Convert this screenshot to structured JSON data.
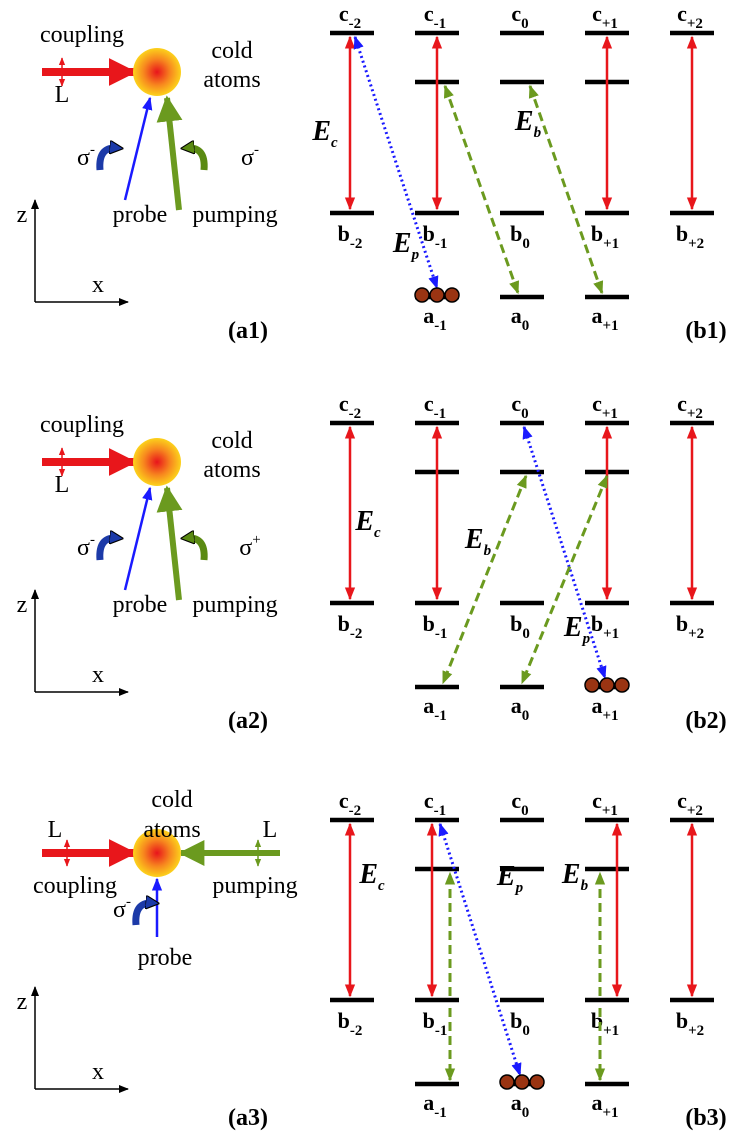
{
  "rows": [
    {
      "coupling": "coupling",
      "cold": "cold",
      "atoms": "atoms",
      "coupling_pol": "L",
      "probe_pol": {
        "base": "σ",
        "sup": "-"
      },
      "pumping_pol": {
        "base": "σ",
        "sup": "-"
      },
      "probe": "probe",
      "pumping": "pumping",
      "z": "z",
      "x": "x",
      "label_a": "(a1)",
      "label_b": "(b1)",
      "c_levels": [
        {
          "base": "c",
          "sub": "-2"
        },
        {
          "base": "c",
          "sub": "-1"
        },
        {
          "base": "c",
          "sub": "0"
        },
        {
          "base": "c",
          "sub": "+1"
        },
        {
          "base": "c",
          "sub": "+2"
        }
      ],
      "b_levels": [
        {
          "base": "b",
          "sub": "-2"
        },
        {
          "base": "b",
          "sub": "-1"
        },
        {
          "base": "b",
          "sub": "0"
        },
        {
          "base": "b",
          "sub": "+1"
        },
        {
          "base": "b",
          "sub": "+2"
        }
      ],
      "a_levels": [
        {
          "base": "a",
          "sub": "-1"
        },
        {
          "base": "a",
          "sub": "0"
        },
        {
          "base": "a",
          "sub": "+1"
        }
      ],
      "E_c": {
        "base": "E",
        "sub": "c"
      },
      "E_p": {
        "base": "E",
        "sub": "p"
      },
      "E_b": {
        "base": "E",
        "sub": "b"
      }
    },
    {
      "coupling": "coupling",
      "cold": "cold",
      "atoms": "atoms",
      "coupling_pol": "L",
      "probe_pol": {
        "base": "σ",
        "sup": "-"
      },
      "pumping_pol": {
        "base": "σ",
        "sup": "+"
      },
      "probe": "probe",
      "pumping": "pumping",
      "z": "z",
      "x": "x",
      "label_a": "(a2)",
      "label_b": "(b2)",
      "c_levels": [
        {
          "base": "c",
          "sub": "-2"
        },
        {
          "base": "c",
          "sub": "-1"
        },
        {
          "base": "c",
          "sub": "0"
        },
        {
          "base": "c",
          "sub": "+1"
        },
        {
          "base": "c",
          "sub": "+2"
        }
      ],
      "b_levels": [
        {
          "base": "b",
          "sub": "-2"
        },
        {
          "base": "b",
          "sub": "-1"
        },
        {
          "base": "b",
          "sub": "0"
        },
        {
          "base": "b",
          "sub": "+1"
        },
        {
          "base": "b",
          "sub": "+2"
        }
      ],
      "a_levels": [
        {
          "base": "a",
          "sub": "-1"
        },
        {
          "base": "a",
          "sub": "0"
        },
        {
          "base": "a",
          "sub": "+1"
        }
      ],
      "E_c": {
        "base": "E",
        "sub": "c"
      },
      "E_p": {
        "base": "E",
        "sub": "p"
      },
      "E_b": {
        "base": "E",
        "sub": "b"
      }
    },
    {
      "coupling": "coupling",
      "cold": "cold",
      "atoms": "atoms",
      "coupling_pol": "L",
      "probe_pol": {
        "base": "σ",
        "sup": "-"
      },
      "pumping_pol": "L",
      "probe": "probe",
      "pumping": "pumping",
      "z": "z",
      "x": "x",
      "label_a": "(a3)",
      "label_b": "(b3)",
      "c_levels": [
        {
          "base": "c",
          "sub": "-2"
        },
        {
          "base": "c",
          "sub": "-1"
        },
        {
          "base": "c",
          "sub": "0"
        },
        {
          "base": "c",
          "sub": "+1"
        },
        {
          "base": "c",
          "sub": "+2"
        }
      ],
      "b_levels": [
        {
          "base": "b",
          "sub": "-2"
        },
        {
          "base": "b",
          "sub": "-1"
        },
        {
          "base": "b",
          "sub": "0"
        },
        {
          "base": "b",
          "sub": "+1"
        },
        {
          "base": "b",
          "sub": "+2"
        }
      ],
      "a_levels": [
        {
          "base": "a",
          "sub": "-1"
        },
        {
          "base": "a",
          "sub": "0"
        },
        {
          "base": "a",
          "sub": "+1"
        }
      ],
      "E_c": {
        "base": "E",
        "sub": "c"
      },
      "E_p": {
        "base": "E",
        "sub": "p"
      },
      "E_b": {
        "base": "E",
        "sub": "b"
      }
    }
  ]
}
